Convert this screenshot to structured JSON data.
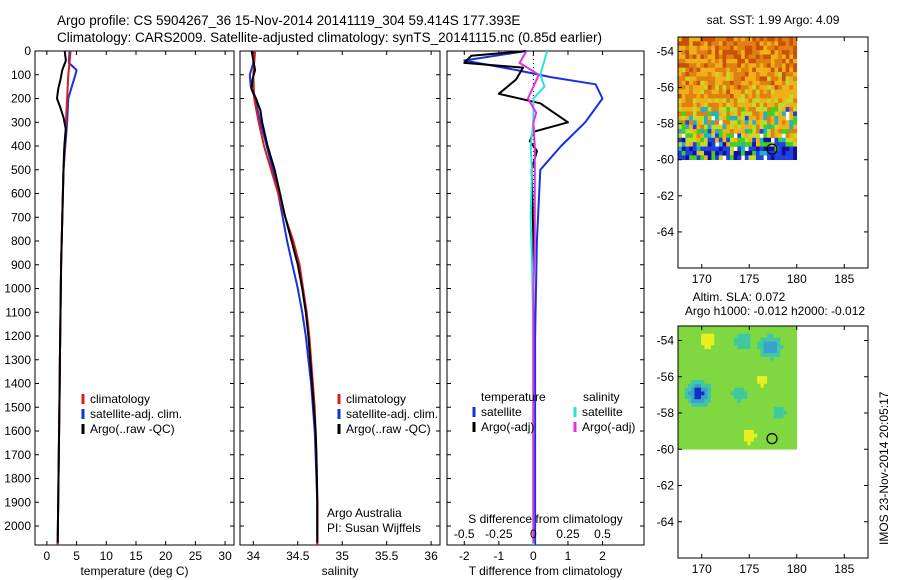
{
  "header": {
    "line1": "Argo profile: CS 5904267_36 15-Nov-2014 20141119_304 59.414S 177.393E",
    "line2": "Climatology: CARS2009. Satellite-adjusted climatology: synTS_20141115.nc (0.85d earlier)"
  },
  "stamp": "IMOS 23-Nov-2014 20:05:17",
  "colors": {
    "climatology": "#d81e1e",
    "satellite": "#1a2fe0",
    "argo": "#000000",
    "cyan": "#33e0e0",
    "magenta": "#e033e0"
  },
  "chart_data": [
    {
      "type": "line",
      "xlabel": "temperature (deg C)",
      "xlim": [
        -2,
        31.5
      ],
      "xticks": [
        0,
        5,
        10,
        15,
        20,
        25,
        30
      ],
      "ylim": [
        0,
        2080
      ],
      "yticks": [
        0,
        100,
        200,
        300,
        400,
        500,
        600,
        700,
        800,
        900,
        1000,
        1100,
        1200,
        1300,
        1400,
        1500,
        1600,
        1700,
        1800,
        1900,
        2000
      ],
      "legend": [
        "climatology",
        "satellite-adj. clim.",
        "Argo(..raw -QC)"
      ],
      "series": [
        {
          "name": "climatology",
          "color": "climatology",
          "points": [
            [
              4.0,
              0
            ],
            [
              3.8,
              50
            ],
            [
              3.6,
              100
            ],
            [
              3.4,
              200
            ],
            [
              3.2,
              300
            ],
            [
              3.0,
              400
            ],
            [
              2.8,
              500
            ],
            [
              2.7,
              600
            ],
            [
              2.6,
              700
            ],
            [
              2.5,
              800
            ],
            [
              2.4,
              900
            ],
            [
              2.35,
              1000
            ],
            [
              2.3,
              1100
            ],
            [
              2.25,
              1200
            ],
            [
              2.2,
              1300
            ],
            [
              2.15,
              1400
            ],
            [
              2.1,
              1500
            ],
            [
              2.05,
              1600
            ],
            [
              2.0,
              1700
            ],
            [
              1.95,
              1800
            ],
            [
              1.9,
              1900
            ],
            [
              1.85,
              2000
            ],
            [
              1.82,
              2080
            ]
          ]
        },
        {
          "name": "satellite-adj. clim.",
          "color": "satellite",
          "points": [
            [
              3.8,
              0
            ],
            [
              3.7,
              50
            ],
            [
              5.0,
              80
            ],
            [
              4.8,
              100
            ],
            [
              4.2,
              150
            ],
            [
              3.6,
              200
            ],
            [
              3.4,
              300
            ],
            [
              3.1,
              400
            ],
            [
              2.8,
              500
            ],
            [
              2.7,
              600
            ],
            [
              2.6,
              700
            ],
            [
              2.5,
              800
            ],
            [
              2.4,
              900
            ],
            [
              2.35,
              1000
            ],
            [
              2.3,
              1100
            ],
            [
              2.25,
              1200
            ],
            [
              2.2,
              1300
            ],
            [
              2.15,
              1400
            ],
            [
              2.1,
              1500
            ],
            [
              2.05,
              1600
            ],
            [
              2.0,
              1700
            ],
            [
              1.95,
              1800
            ],
            [
              1.9,
              1900
            ],
            [
              1.85,
              2000
            ],
            [
              1.82,
              2080
            ]
          ]
        },
        {
          "name": "Argo(..raw -QC)",
          "color": "argo",
          "points": [
            [
              3.0,
              0
            ],
            [
              3.2,
              40
            ],
            [
              2.6,
              80
            ],
            [
              2.3,
              120
            ],
            [
              1.9,
              160
            ],
            [
              1.7,
              200
            ],
            [
              2.3,
              240
            ],
            [
              2.8,
              280
            ],
            [
              3.2,
              330
            ],
            [
              3.0,
              380
            ],
            [
              2.9,
              420
            ],
            [
              2.8,
              500
            ],
            [
              2.7,
              600
            ],
            [
              2.6,
              700
            ],
            [
              2.5,
              800
            ],
            [
              2.4,
              900
            ],
            [
              2.35,
              1000
            ],
            [
              2.3,
              1100
            ],
            [
              2.25,
              1200
            ],
            [
              2.2,
              1300
            ],
            [
              2.15,
              1400
            ],
            [
              2.1,
              1500
            ],
            [
              2.05,
              1600
            ],
            [
              2.0,
              1700
            ],
            [
              1.95,
              1800
            ],
            [
              1.9,
              1900
            ],
            [
              1.85,
              2000
            ],
            [
              1.82,
              2070
            ]
          ]
        }
      ]
    },
    {
      "type": "line",
      "xlabel": "salinity",
      "xlim": [
        33.85,
        36.1
      ],
      "xticks": [
        34,
        34.5,
        35,
        35.5,
        36
      ],
      "ylim": [
        0,
        2080
      ],
      "legend": [
        "climatology",
        "satellite-adj. clim.",
        "Argo(..raw -QC)"
      ],
      "annotation": [
        "Argo Australia",
        "PI: Susan Wijffels"
      ],
      "series": [
        {
          "name": "climatology",
          "color": "climatology",
          "points": [
            [
              34.02,
              0
            ],
            [
              34.0,
              100
            ],
            [
              34.01,
              200
            ],
            [
              34.06,
              300
            ],
            [
              34.12,
              400
            ],
            [
              34.2,
              500
            ],
            [
              34.28,
              600
            ],
            [
              34.36,
              700
            ],
            [
              34.45,
              800
            ],
            [
              34.52,
              900
            ],
            [
              34.56,
              1000
            ],
            [
              34.6,
              1100
            ],
            [
              34.63,
              1200
            ],
            [
              34.65,
              1300
            ],
            [
              34.67,
              1400
            ],
            [
              34.69,
              1500
            ],
            [
              34.7,
              1600
            ],
            [
              34.71,
              1700
            ],
            [
              34.715,
              1800
            ],
            [
              34.72,
              1900
            ],
            [
              34.72,
              2000
            ],
            [
              34.72,
              2080
            ]
          ]
        },
        {
          "name": "satellite-adj. clim.",
          "color": "satellite",
          "points": [
            [
              34.0,
              0
            ],
            [
              34.0,
              50
            ],
            [
              33.96,
              100
            ],
            [
              33.97,
              150
            ],
            [
              34.02,
              200
            ],
            [
              34.08,
              300
            ],
            [
              34.15,
              400
            ],
            [
              34.22,
              500
            ],
            [
              34.28,
              600
            ],
            [
              34.33,
              700
            ],
            [
              34.38,
              800
            ],
            [
              34.44,
              900
            ],
            [
              34.5,
              1000
            ],
            [
              34.55,
              1100
            ],
            [
              34.59,
              1200
            ],
            [
              34.62,
              1300
            ],
            [
              34.65,
              1400
            ],
            [
              34.67,
              1500
            ],
            [
              34.69,
              1600
            ],
            [
              34.7,
              1700
            ],
            [
              34.71,
              1800
            ],
            [
              34.72,
              1900
            ],
            [
              34.72,
              2000
            ],
            [
              34.72,
              2080
            ]
          ]
        },
        {
          "name": "Argo(..raw -QC)",
          "color": "argo",
          "points": [
            [
              33.98,
              0
            ],
            [
              34.0,
              40
            ],
            [
              34.02,
              80
            ],
            [
              33.99,
              120
            ],
            [
              33.98,
              160
            ],
            [
              34.03,
              200
            ],
            [
              34.08,
              250
            ],
            [
              34.1,
              300
            ],
            [
              34.16,
              400
            ],
            [
              34.24,
              500
            ],
            [
              34.3,
              600
            ],
            [
              34.36,
              700
            ],
            [
              34.43,
              800
            ],
            [
              34.5,
              900
            ],
            [
              34.55,
              1000
            ],
            [
              34.59,
              1100
            ],
            [
              34.62,
              1200
            ],
            [
              34.64,
              1300
            ],
            [
              34.66,
              1400
            ],
            [
              34.68,
              1500
            ],
            [
              34.7,
              1600
            ],
            [
              34.71,
              1700
            ],
            [
              34.715,
              1800
            ],
            [
              34.72,
              1900
            ],
            [
              34.72,
              2000
            ],
            [
              34.72,
              2070
            ]
          ]
        }
      ]
    },
    {
      "type": "line",
      "xlabel": "T difference from climatology",
      "xlabel_top": "S difference from climatology",
      "xlim": [
        -2.5,
        3.2
      ],
      "xticks": [
        -2,
        -1,
        0,
        1,
        2
      ],
      "xlim_top": [
        -0.625,
        0.8
      ],
      "xticks_top": [
        -0.5,
        -0.25,
        0,
        0.25,
        0.5
      ],
      "xtick_labels_top": [
        "-0.5",
        "-0.25",
        "0",
        "0.25",
        "0.5"
      ],
      "ylim": [
        0,
        2080
      ],
      "legend_headers": [
        "temperature",
        "salinity"
      ],
      "legend": [
        "satellite",
        "Argo(-adj)",
        "satellite",
        "Argo(-adj)"
      ],
      "series": [
        {
          "name": "satellite",
          "color": "satellite",
          "axis": "T",
          "points": [
            [
              -0.2,
              0
            ],
            [
              -2.0,
              40
            ],
            [
              -0.5,
              80
            ],
            [
              0.5,
              110
            ],
            [
              1.8,
              140
            ],
            [
              2.0,
              200
            ],
            [
              1.5,
              300
            ],
            [
              0.8,
              400
            ],
            [
              0.2,
              500
            ],
            [
              0.1,
              800
            ],
            [
              0.05,
              1200
            ],
            [
              0.05,
              1600
            ],
            [
              0.05,
              2000
            ],
            [
              0.05,
              2080
            ]
          ]
        },
        {
          "name": "Argo(-adj)",
          "color": "argo",
          "axis": "T",
          "points": [
            [
              -0.2,
              0
            ],
            [
              -1.8,
              20
            ],
            [
              -2.0,
              50
            ],
            [
              -0.3,
              70
            ],
            [
              -0.5,
              120
            ],
            [
              -1.0,
              180
            ],
            [
              0.2,
              220
            ],
            [
              0.6,
              260
            ],
            [
              1.0,
              300
            ],
            [
              0.0,
              340
            ],
            [
              -0.1,
              380
            ],
            [
              0.1,
              420
            ],
            [
              -0.05,
              500
            ],
            [
              0.0,
              800
            ],
            [
              0.0,
              1200
            ],
            [
              0.0,
              1600
            ],
            [
              0.0,
              2000
            ],
            [
              0.0,
              2070
            ]
          ]
        },
        {
          "name": "satellite",
          "color": "cyan",
          "axis": "S",
          "points": [
            [
              0.1,
              0
            ],
            [
              0.05,
              100
            ],
            [
              0.08,
              150
            ],
            [
              0.0,
              200
            ],
            [
              0.0,
              300
            ],
            [
              -0.02,
              400
            ],
            [
              -0.01,
              500
            ],
            [
              -0.02,
              700
            ],
            [
              -0.01,
              900
            ],
            [
              0.0,
              1200
            ],
            [
              0.0,
              1600
            ],
            [
              0.0,
              2000
            ],
            [
              0.0,
              2080
            ]
          ]
        },
        {
          "name": "Argo(-adj)",
          "color": "magenta",
          "axis": "S",
          "points": [
            [
              -0.05,
              0
            ],
            [
              -0.1,
              50
            ],
            [
              0.04,
              100
            ],
            [
              0.0,
              150
            ],
            [
              -0.04,
              200
            ],
            [
              0.02,
              260
            ],
            [
              0.0,
              300
            ],
            [
              0.01,
              400
            ],
            [
              0.01,
              600
            ],
            [
              0.01,
              800
            ],
            [
              0.0,
              1000
            ],
            [
              0.0,
              1200
            ],
            [
              0.0,
              1600
            ],
            [
              0.0,
              2000
            ],
            [
              0.0,
              2070
            ]
          ]
        }
      ]
    },
    {
      "type": "heatmap",
      "title": "sat. SST: 1.99 Argo: 4.09",
      "xlim": [
        167.5,
        187.5
      ],
      "xticks": [
        170,
        175,
        180,
        185
      ],
      "ylim": [
        -66,
        -53.2
      ],
      "yticks": [
        -54,
        -56,
        -58,
        -60,
        -62,
        -64
      ],
      "data_extent": {
        "x": [
          167.5,
          180
        ],
        "y": [
          -60,
          -53.2
        ]
      },
      "marker": {
        "lon": 177.393,
        "lat": -59.414
      },
      "palette": [
        "#1010a0",
        "#2040e0",
        "#20b0c8",
        "#40d020",
        "#c8d828",
        "#f0b018",
        "#e08010",
        "#c85008"
      ]
    },
    {
      "type": "heatmap",
      "title": "Altim. SLA: 0.072",
      "subtitle": "Argo h1000: -0.012 h2000: -0.012",
      "xlim": [
        167.5,
        187.5
      ],
      "xticks": [
        170,
        175,
        180,
        185
      ],
      "ylim": [
        -66,
        -53.2
      ],
      "yticks": [
        -54,
        -56,
        -58,
        -60,
        -62,
        -64
      ],
      "data_extent": {
        "x": [
          167.5,
          180
        ],
        "y": [
          -60,
          -53.2
        ]
      },
      "marker": {
        "lon": 177.393,
        "lat": -59.414
      },
      "palette": [
        "#1030c0",
        "#3aa0d0",
        "#40c8a0",
        "#80d840",
        "#e8f020"
      ]
    }
  ]
}
